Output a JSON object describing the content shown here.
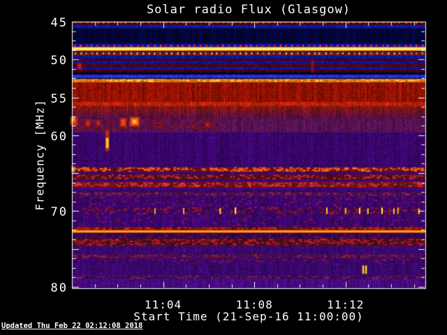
{
  "updated_text": "Updated Thu Feb 22 02:12:08 2018",
  "frame_color": "#ffffff",
  "chart_data": {
    "type": "heatmap",
    "title": "Solar radio Flux (Glasgow)",
    "xlabel": "Start Time (21-Sep-16 11:00:00)",
    "ylabel": "Frequency [MHz]",
    "x_range_minutes": [
      0,
      15.5
    ],
    "x_major_ticks": [
      {
        "t": 4,
        "label": "11:04"
      },
      {
        "t": 8,
        "label": "11:08"
      },
      {
        "t": 12,
        "label": "11:12"
      }
    ],
    "x_minor_step_min": 1,
    "y_range_mhz": [
      45,
      80.2
    ],
    "y_major_step": 5,
    "y_minor_step": 1.25,
    "y_labeled_ticks": [
      45,
      50,
      55,
      60,
      70,
      80
    ],
    "grid": false,
    "legend": "none",
    "dash_period_s": 15,
    "bands": [
      {
        "f0": 45.0,
        "f1": 45.45,
        "style": "dashes",
        "base": "#420a0c",
        "accent": "#d84020",
        "anchor": "top",
        "hfrac": 0.5,
        "vary": 0.5
      },
      {
        "f0": 45.45,
        "f1": 45.85,
        "style": "noise",
        "base": "#0f1ab0",
        "vary": 0.35
      },
      {
        "f0": 45.85,
        "f1": 47.9,
        "style": "noise",
        "base": "#04073e",
        "vary": 0.55
      },
      {
        "f0": 47.9,
        "f1": 48.35,
        "style": "dashes",
        "base": "#0a14b4",
        "accent": "#d42805",
        "anchor": "bottom",
        "hfrac": 0.7,
        "vary": 0.3
      },
      {
        "f0": 48.85,
        "f1": 49.05,
        "style": "noise",
        "base": "#0a14a8",
        "vary": 0.3
      },
      {
        "f0": 49.05,
        "f1": 49.45,
        "style": "dashes",
        "base": "#6e1a10",
        "accent": "#ff8010",
        "anchor": "top",
        "hfrac": 0.75,
        "vary": 0.4
      },
      {
        "f0": 49.45,
        "f1": 49.9,
        "style": "noise",
        "base": "#0d18b0",
        "vary": 0.3
      },
      {
        "f0": 49.9,
        "f1": 50.2,
        "style": "noise",
        "base": "#4a040c",
        "vary": 0.4
      },
      {
        "f0": 50.2,
        "f1": 50.6,
        "style": "noise",
        "base": "#0c16ac",
        "vary": 0.3
      },
      {
        "f0": 50.6,
        "f1": 51.0,
        "style": "noise",
        "base": "#52060e",
        "vary": 0.4
      },
      {
        "f0": 51.0,
        "f1": 51.35,
        "style": "noise",
        "base": "#0c16ac",
        "vary": 0.3
      },
      {
        "f0": 51.35,
        "f1": 51.7,
        "style": "noise",
        "base": "#46060c",
        "vary": 0.4
      },
      {
        "f0": 51.7,
        "f1": 52.0,
        "style": "noise",
        "base": "#020430",
        "vary": 0.5
      },
      {
        "f0": 52.0,
        "f1": 52.45,
        "style": "noise",
        "base": "#2334d8",
        "vary": 0.25
      },
      {
        "f0": 52.45,
        "f1": 52.57,
        "style": "noise",
        "base": "#10052a",
        "vary": 0.35
      },
      {
        "f0": 52.57,
        "f1": 53.0,
        "style": "speckle",
        "base": "#ee7c0c",
        "accent": "#ffb132",
        "density": 0.5,
        "vary": 0.2
      },
      {
        "f0": 53.0,
        "f1": 55.6,
        "style": "noise",
        "base": "#a01404",
        "vary": 0.38
      },
      {
        "f0": 55.6,
        "f1": 56.1,
        "style": "noise",
        "base": "#c22408",
        "vary": 0.3
      },
      {
        "f0": 56.1,
        "f1": 57.9,
        "style": "fade",
        "base": "#9c1a10",
        "base2": "#5a1058",
        "vary": 0.35
      },
      {
        "f0": 57.9,
        "f1": 59.6,
        "style": "noise",
        "base": "#561353",
        "vary": 0.3
      },
      {
        "f0": 59.6,
        "f1": 64.2,
        "style": "noise",
        "base": "#42077a",
        "vary": 0.28
      },
      {
        "f0": 64.2,
        "f1": 64.85,
        "style": "speckle",
        "base": "#6e1226",
        "accent": "#f55c10",
        "density": 0.6,
        "vary": 0.3
      },
      {
        "f0": 64.85,
        "f1": 65.15,
        "style": "noise",
        "base": "#42077a",
        "vary": 0.28
      },
      {
        "f0": 65.15,
        "f1": 65.85,
        "style": "speckle",
        "base": "#5c0f1e",
        "accent": "#a82830",
        "density": 0.4,
        "vary": 0.3
      },
      {
        "f0": 65.85,
        "f1": 66.15,
        "style": "noise",
        "base": "#42077a",
        "vary": 0.28
      },
      {
        "f0": 66.15,
        "f1": 66.9,
        "style": "speckle",
        "base": "#7a1420",
        "accent": "#c43028",
        "density": 0.45,
        "vary": 0.3
      },
      {
        "f0": 66.9,
        "f1": 67.5,
        "style": "noise",
        "base": "#42077a",
        "vary": 0.28
      },
      {
        "f0": 67.5,
        "f1": 68.0,
        "style": "speckle",
        "base": "#4c0f56",
        "accent": "#8a2040",
        "density": 0.3,
        "vary": 0.28
      },
      {
        "f0": 68.0,
        "f1": 69.4,
        "style": "speckle",
        "base": "#42077a",
        "accent": "#64124a",
        "density": 0.2,
        "vary": 0.28
      },
      {
        "f0": 69.4,
        "f1": 70.5,
        "style": "speckle",
        "base": "#40086f",
        "accent": "#8a1424",
        "density": 0.3,
        "vary": 0.28
      },
      {
        "f0": 70.5,
        "f1": 72.1,
        "style": "speckle",
        "base": "#42077a",
        "accent": "#5c1050",
        "density": 0.15,
        "vary": 0.28
      },
      {
        "f0": 72.1,
        "f1": 72.5,
        "style": "speckle",
        "base": "#58101c",
        "accent": "#b42410",
        "density": 0.6,
        "vary": 0.3
      },
      {
        "f0": 72.9,
        "f1": 73.6,
        "style": "speckle",
        "base": "#330560",
        "accent": "#5a1240",
        "density": 0.2,
        "vary": 0.3
      },
      {
        "f0": 73.6,
        "f1": 74.6,
        "style": "speckle",
        "base": "#521024",
        "accent": "#a01a20",
        "density": 0.5,
        "vary": 0.3
      },
      {
        "f0": 74.6,
        "f1": 75.7,
        "style": "noise",
        "base": "#400a74",
        "vary": 0.28
      },
      {
        "f0": 75.7,
        "f1": 76.3,
        "style": "speckle",
        "base": "#4a0e5e",
        "accent": "#7c1c38",
        "density": 0.3,
        "vary": 0.28
      },
      {
        "f0": 76.3,
        "f1": 76.9,
        "style": "speckle",
        "base": "#42077a",
        "accent": "#6a1444",
        "density": 0.2,
        "vary": 0.28
      },
      {
        "f0": 76.9,
        "f1": 78.5,
        "style": "noise",
        "base": "#3e0973",
        "vary": 0.28
      },
      {
        "f0": 78.5,
        "f1": 79.0,
        "style": "speckle",
        "base": "#460b6e",
        "accent": "#702046",
        "density": 0.28,
        "vary": 0.28
      },
      {
        "f0": 79.0,
        "f1": 80.2,
        "style": "noise",
        "base": "#470c80",
        "vary": 0.3
      }
    ],
    "bright_lines": [
      {
        "f": 48.6,
        "half_mhz": 0.26,
        "stops": [
          "#ff7808",
          "#ffd81e",
          "#ffffb4",
          "#ffd81e",
          "#ff7808"
        ]
      },
      {
        "f": 72.7,
        "half_mhz": 0.2,
        "stops": [
          "#b43208",
          "#ff8c14",
          "#ffb128",
          "#ff8c14",
          "#b43208"
        ]
      }
    ],
    "features": [
      {
        "type": "blobrow",
        "t0": 0,
        "t1": 6.4,
        "f0": 57.7,
        "f1": 59.3,
        "color": "#8a1210",
        "density": 0.5
      },
      {
        "type": "blob",
        "t": 0.1,
        "f": 58.2,
        "w": 0.25,
        "h": 0.9,
        "color": "#e03010"
      },
      {
        "type": "blob",
        "t": 0.7,
        "f": 58.4,
        "w": 0.15,
        "h": 0.6,
        "color": "#cc2810"
      },
      {
        "type": "blob",
        "t": 1.15,
        "f": 58.4,
        "w": 0.12,
        "h": 0.5,
        "color": "#cc2810"
      },
      {
        "type": "blob",
        "t": 2.25,
        "f": 58.3,
        "w": 0.2,
        "h": 0.9,
        "color": "#f04010"
      },
      {
        "type": "blob",
        "t": 2.75,
        "f": 58.2,
        "w": 0.35,
        "h": 1.0,
        "color": "#f85a10",
        "core": "#ffbf30"
      },
      {
        "type": "blob",
        "t": 5.95,
        "f": 58.6,
        "w": 0.12,
        "h": 0.35,
        "color": "#c82410"
      },
      {
        "type": "drip",
        "t": 1.55,
        "f0": 59.4,
        "f1": 62.1,
        "w": 0.18,
        "color": "#c03010",
        "core": "#ffc832"
      },
      {
        "type": "blob",
        "t": 0.33,
        "f": 50.9,
        "w": 0.14,
        "h": 0.7,
        "color": "#c81818"
      },
      {
        "type": "vstreak",
        "t": 10.55,
        "f0": 50.1,
        "f1": 51.7,
        "w": 0.12,
        "color": "#a01010"
      },
      {
        "type": "vticks",
        "f0": 69.5,
        "f1": 70.4,
        "color": "#ffd820",
        "ts": [
          3.64,
          4.9,
          6.5,
          7.17,
          11.18,
          12.0,
          12.62,
          12.98,
          13.6,
          14.12,
          14.3,
          15.22
        ]
      },
      {
        "type": "ydash",
        "t": 12.83,
        "f0": 77.2,
        "f1": 78.3,
        "color": "#ffd518"
      },
      {
        "type": "blob",
        "t": 0.06,
        "f": 57.9,
        "w": 0.1,
        "h": 0.5,
        "color": "#ffb020"
      },
      {
        "type": "blob",
        "t": 0.06,
        "f": 64.5,
        "w": 0.08,
        "h": 0.5,
        "color": "#ffc828"
      }
    ]
  }
}
